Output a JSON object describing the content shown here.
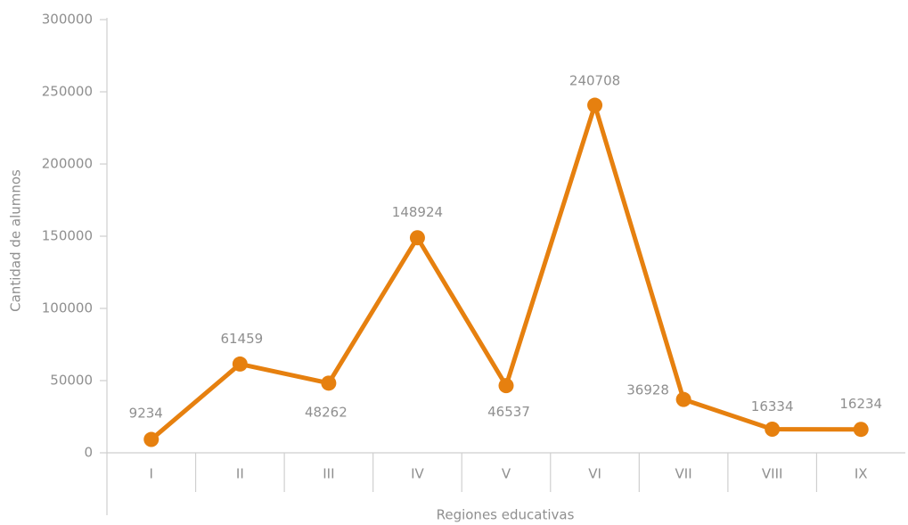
{
  "chart_data": {
    "type": "line",
    "categories": [
      "I",
      "II",
      "III",
      "IV",
      "V",
      "VI",
      "VII",
      "VIII",
      "IX"
    ],
    "series": [
      {
        "color": "#e6800f",
        "values": [
          9234,
          61459,
          48262,
          148924,
          46537,
          240708,
          36928,
          16334,
          16234
        ]
      }
    ],
    "xlabel": "Regiones educativas",
    "ylabel": "Cantidad de alumnos",
    "ylim": [
      0,
      300000
    ],
    "yticks": [
      0,
      50000,
      100000,
      150000,
      200000,
      250000,
      300000
    ]
  }
}
